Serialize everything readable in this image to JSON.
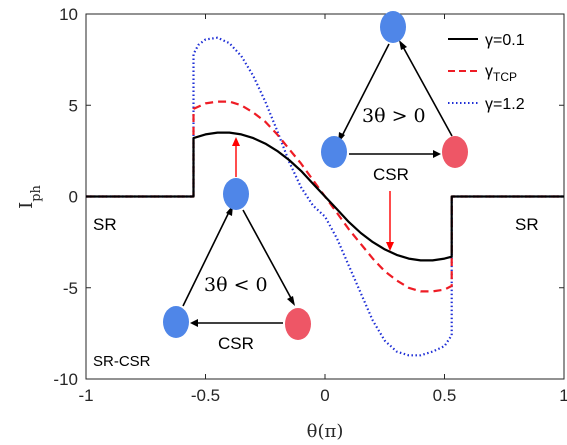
{
  "chart_data": {
    "type": "line",
    "xlabel": "θ(π)",
    "ylabel": "I",
    "ylabel_subscript": "ph",
    "xlim": [
      -1,
      1
    ],
    "ylim": [
      -10,
      10
    ],
    "xticks": [
      -1,
      -0.5,
      0,
      0.5,
      1
    ],
    "xtick_labels": [
      "-1",
      "-0.5",
      "0",
      "0.5",
      "1"
    ],
    "yticks": [
      -10,
      -5,
      0,
      5,
      10
    ],
    "ytick_labels": [
      "-10",
      "-5",
      "0",
      "5",
      "10"
    ],
    "grid": false,
    "legend_position": "top-right",
    "series": [
      {
        "name": "γ=0.1",
        "legend_main": "γ=0.1",
        "legend_sub": "",
        "color": "#000000",
        "style": "solid",
        "amplitude": 3.5,
        "x": [
          -1,
          -0.55,
          -0.55,
          -0.5,
          -0.45,
          -0.4,
          -0.35,
          -0.3,
          -0.25,
          -0.2,
          -0.15,
          -0.1,
          -0.05,
          0,
          0.05,
          0.1,
          0.15,
          0.2,
          0.25,
          0.3,
          0.35,
          0.4,
          0.45,
          0.5,
          0.53,
          0.53,
          1
        ],
        "y": [
          0,
          0,
          3.2,
          3.4,
          3.5,
          3.5,
          3.4,
          3.2,
          2.9,
          2.5,
          2.0,
          1.4,
          0.7,
          0,
          -0.7,
          -1.4,
          -2.0,
          -2.5,
          -2.9,
          -3.2,
          -3.4,
          -3.5,
          -3.5,
          -3.4,
          -3.3,
          0,
          0
        ]
      },
      {
        "name": "γTCP",
        "legend_main": "γ",
        "legend_sub": "TCP",
        "color": "#ee1c25",
        "style": "dashed",
        "x": [
          -1,
          -0.55,
          -0.55,
          -0.5,
          -0.45,
          -0.4,
          -0.35,
          -0.3,
          -0.25,
          -0.2,
          -0.15,
          -0.1,
          -0.05,
          0,
          0.05,
          0.1,
          0.15,
          0.2,
          0.25,
          0.3,
          0.35,
          0.4,
          0.45,
          0.5,
          0.53,
          0.53,
          1
        ],
        "y": [
          0,
          0,
          4.8,
          5.1,
          5.2,
          5.2,
          5.0,
          4.6,
          4.1,
          3.4,
          2.6,
          1.8,
          0.9,
          0,
          -0.9,
          -1.8,
          -2.6,
          -3.4,
          -4.1,
          -4.6,
          -5.0,
          -5.2,
          -5.2,
          -5.1,
          -4.9,
          0,
          0
        ]
      },
      {
        "name": "γ=1.2",
        "legend_main": "γ=1.2",
        "legend_sub": "",
        "color": "#1f2fd6",
        "style": "dotted",
        "x": [
          -1,
          -0.55,
          -0.55,
          -0.53,
          -0.5,
          -0.45,
          -0.4,
          -0.35,
          -0.3,
          -0.25,
          -0.2,
          -0.15,
          -0.1,
          -0.05,
          0,
          0.05,
          0.1,
          0.15,
          0.2,
          0.25,
          0.3,
          0.35,
          0.4,
          0.45,
          0.5,
          0.53,
          0.53,
          1
        ],
        "y": [
          0,
          0,
          7.8,
          8.3,
          8.6,
          8.7,
          8.4,
          7.7,
          6.6,
          5.2,
          3.6,
          1.9,
          0.5,
          -0.5,
          -1.1,
          -2.3,
          -3.8,
          -5.3,
          -6.8,
          -7.9,
          -8.5,
          -8.7,
          -8.7,
          -8.5,
          -8.2,
          -7.6,
          0,
          0
        ]
      }
    ],
    "annotations": {
      "sr_left": "SR",
      "sr_right": "SR",
      "sr_csr": "SR-CSR",
      "csr_upper": "CSR",
      "csr_lower": "CSR",
      "theta_positive": "3θ > 0",
      "theta_negative": "3θ < 0"
    },
    "node_colors": {
      "blue": "#4f86e8",
      "red": "#ee5666",
      "arrow_red": "#ff0000"
    }
  }
}
